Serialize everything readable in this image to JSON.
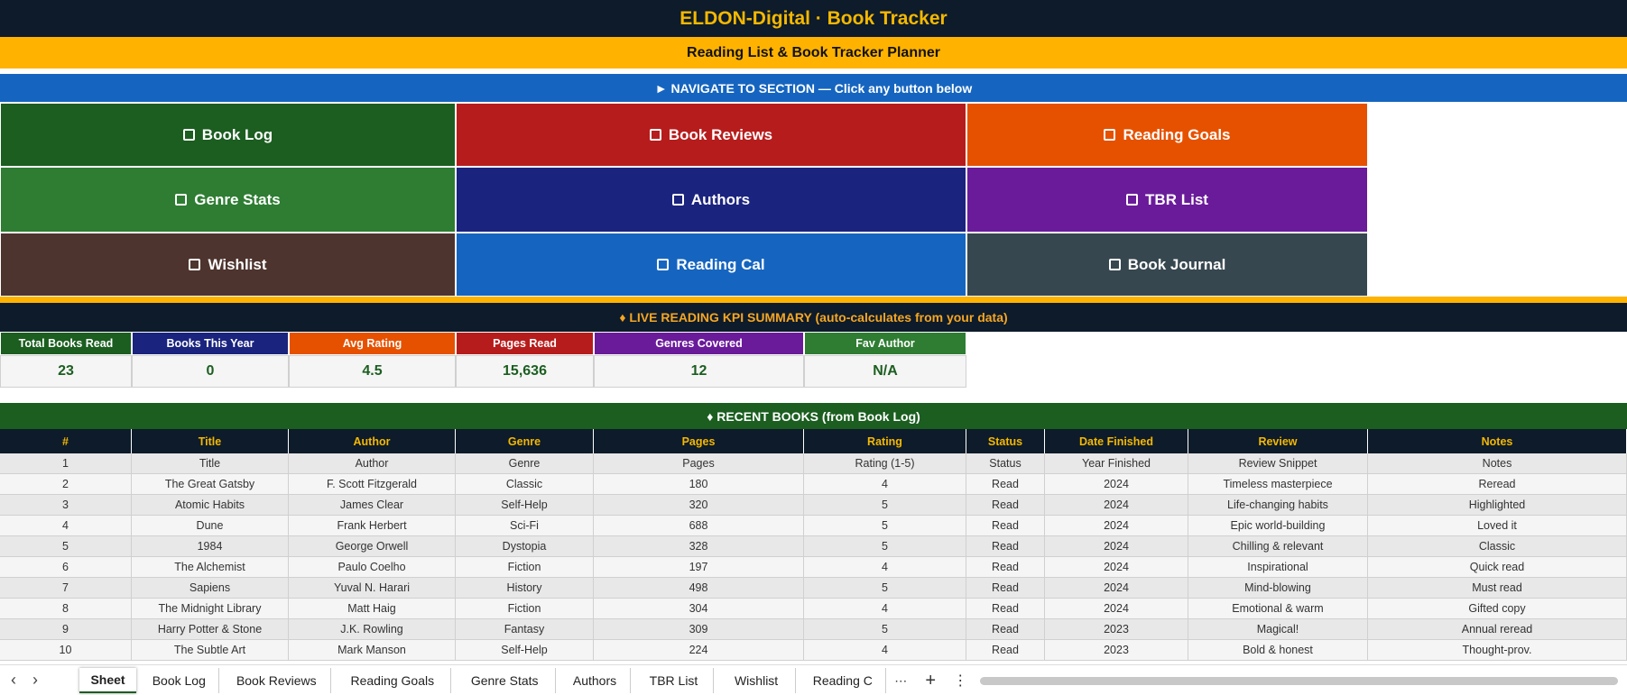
{
  "header": {
    "title": "ELDON-Digital · Book Tracker",
    "subtitle": "Reading List & Book Tracker Planner"
  },
  "nav": {
    "label": "► NAVIGATE TO SECTION — Click any button below",
    "buttons": [
      {
        "label": "Book Log",
        "color": "#1b5e20"
      },
      {
        "label": "Book Reviews",
        "color": "#b71c1c"
      },
      {
        "label": "Reading Goals",
        "color": "#e65100"
      },
      {
        "label": "Genre Stats",
        "color": "#2e7d32"
      },
      {
        "label": "Authors",
        "color": "#1a237e"
      },
      {
        "label": "TBR List",
        "color": "#6a1b9a"
      },
      {
        "label": "Wishlist",
        "color": "#4e342e"
      },
      {
        "label": "Reading Cal",
        "color": "#1565c0"
      },
      {
        "label": "Book Journal",
        "color": "#37474f"
      }
    ]
  },
  "kpi": {
    "title": "♦  LIVE READING KPI SUMMARY  (auto-calculates from your data)",
    "items": [
      {
        "label": "Total Books Read",
        "value": "23",
        "color": "#1b5e20"
      },
      {
        "label": "Books This Year",
        "value": "0",
        "color": "#1a237e"
      },
      {
        "label": "Avg Rating",
        "value": "4.5",
        "color": "#e65100"
      },
      {
        "label": "Pages Read",
        "value": "15,636",
        "color": "#b71c1c"
      },
      {
        "label": "Genres Covered",
        "value": "12",
        "color": "#6a1b9a"
      },
      {
        "label": "Fav Author",
        "value": "N/A",
        "color": "#2e7d32"
      }
    ]
  },
  "table": {
    "title": "♦  RECENT BOOKS  (from Book Log)",
    "columns": [
      "#",
      "Title",
      "Author",
      "Genre",
      "Pages",
      "Rating",
      "Status",
      "Date Finished",
      "Review",
      "Notes"
    ],
    "rows": [
      [
        "1",
        "Title",
        "Author",
        "Genre",
        "Pages",
        "Rating (1-5)",
        "Status",
        "Year Finished",
        "Review Snippet",
        "Notes"
      ],
      [
        "2",
        "The Great Gatsby",
        "F. Scott Fitzgerald",
        "Classic",
        "180",
        "4",
        "Read",
        "2024",
        "Timeless masterpiece",
        "Reread"
      ],
      [
        "3",
        "Atomic Habits",
        "James Clear",
        "Self-Help",
        "320",
        "5",
        "Read",
        "2024",
        "Life-changing habits",
        "Highlighted"
      ],
      [
        "4",
        "Dune",
        "Frank Herbert",
        "Sci-Fi",
        "688",
        "5",
        "Read",
        "2024",
        "Epic world-building",
        "Loved it"
      ],
      [
        "5",
        "1984",
        "George Orwell",
        "Dystopia",
        "328",
        "5",
        "Read",
        "2024",
        "Chilling & relevant",
        "Classic"
      ],
      [
        "6",
        "The Alchemist",
        "Paulo Coelho",
        "Fiction",
        "197",
        "4",
        "Read",
        "2024",
        "Inspirational",
        "Quick read"
      ],
      [
        "7",
        "Sapiens",
        "Yuval N. Harari",
        "History",
        "498",
        "5",
        "Read",
        "2024",
        "Mind-blowing",
        "Must read"
      ],
      [
        "8",
        "The Midnight Library",
        "Matt Haig",
        "Fiction",
        "304",
        "4",
        "Read",
        "2024",
        "Emotional & warm",
        "Gifted copy"
      ],
      [
        "9",
        "Harry Potter & Stone",
        "J.K. Rowling",
        "Fantasy",
        "309",
        "5",
        "Read",
        "2023",
        "Magical!",
        "Annual reread"
      ],
      [
        "10",
        "The Subtle Art",
        "Mark Manson",
        "Self-Help",
        "224",
        "4",
        "Read",
        "2023",
        "Bold & honest",
        "Thought-prov."
      ]
    ]
  },
  "tabs": [
    "Sheet",
    "Book Log",
    "Book Reviews",
    "Reading Goals",
    "Genre Stats",
    "Authors",
    "TBR List",
    "Wishlist",
    "Reading C"
  ]
}
